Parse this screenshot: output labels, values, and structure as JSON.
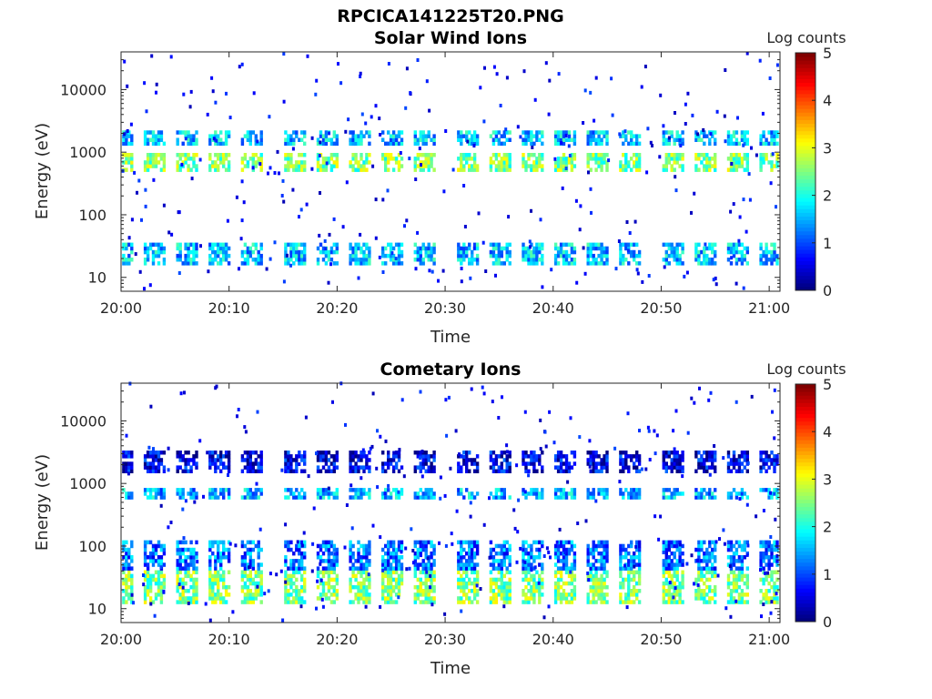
{
  "page_title": "RPCICA141225T20.PNG",
  "chart_data": [
    {
      "type": "heatmap",
      "title": "Solar Wind Ions",
      "xlabel": "Time",
      "ylabel": "Energy (eV)",
      "x_ticks": [
        "20:00",
        "20:10",
        "20:20",
        "20:30",
        "20:40",
        "20:50",
        "21:00"
      ],
      "x_range": [
        "20:00",
        "21:01"
      ],
      "y_ticks": [
        "10",
        "100",
        "1000",
        "10000"
      ],
      "y_scale": "log",
      "y_range": [
        6,
        40000
      ],
      "colorbar": {
        "title": "Log counts",
        "ticks": [
          "0",
          "1",
          "2",
          "3",
          "4",
          "5"
        ],
        "range": [
          0,
          5
        ],
        "colormap": "jet"
      },
      "sweeps": [
        "20:00",
        "20:03",
        "20:06",
        "20:09",
        "20:12",
        "20:16",
        "20:19",
        "20:22",
        "20:25",
        "20:28",
        "20:32",
        "20:35",
        "20:38",
        "20:41",
        "20:44",
        "20:47",
        "20:51",
        "20:54",
        "20:57",
        "21:00"
      ],
      "bands": [
        {
          "energy_eV": [
            15,
            35
          ],
          "log_counts": 1.6
        },
        {
          "energy_eV": [
            500,
            1000
          ],
          "log_counts": 2.5
        },
        {
          "energy_eV": [
            1200,
            2200
          ],
          "log_counts": 1.6
        }
      ]
    },
    {
      "type": "heatmap",
      "title": "Cometary Ions",
      "xlabel": "Time",
      "ylabel": "Energy (eV)",
      "x_ticks": [
        "20:00",
        "20:10",
        "20:20",
        "20:30",
        "20:40",
        "20:50",
        "21:00"
      ],
      "x_range": [
        "20:00",
        "21:01"
      ],
      "y_ticks": [
        "10",
        "100",
        "1000",
        "10000"
      ],
      "y_scale": "log",
      "y_range": [
        6,
        40000
      ],
      "colorbar": {
        "title": "Log counts",
        "ticks": [
          "0",
          "1",
          "2",
          "3",
          "4",
          "5"
        ],
        "range": [
          0,
          5
        ],
        "colormap": "jet"
      },
      "sweeps": [
        "20:00",
        "20:03",
        "20:06",
        "20:09",
        "20:12",
        "20:16",
        "20:19",
        "20:22",
        "20:25",
        "20:28",
        "20:32",
        "20:35",
        "20:38",
        "20:41",
        "20:44",
        "20:47",
        "20:51",
        "20:54",
        "20:57",
        "21:00"
      ],
      "bands": [
        {
          "energy_eV": [
            12,
            40
          ],
          "log_counts": 2.5
        },
        {
          "energy_eV": [
            40,
            120
          ],
          "log_counts": 1.2
        },
        {
          "energy_eV": [
            600,
            900
          ],
          "log_counts": 1.5
        },
        {
          "energy_eV": [
            1500,
            3500
          ],
          "log_counts": 0.5
        }
      ]
    }
  ]
}
